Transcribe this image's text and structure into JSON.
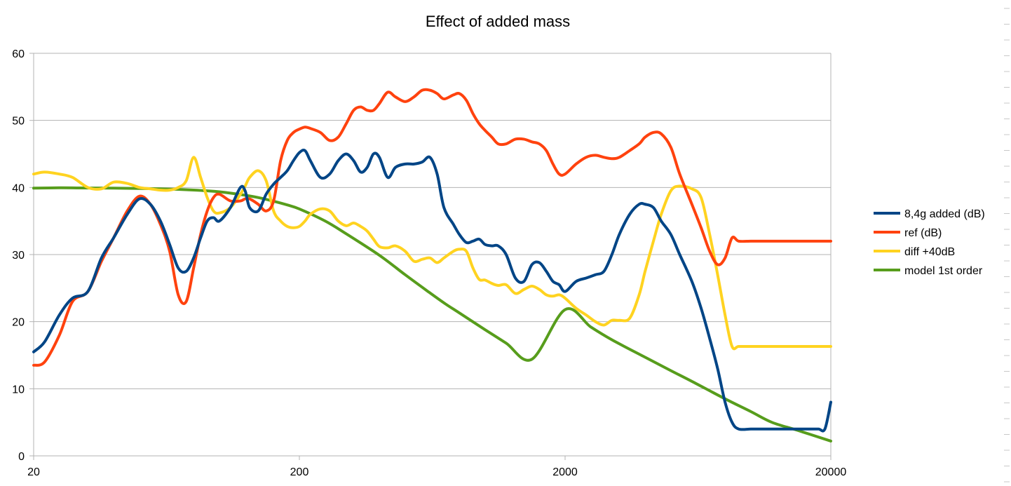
{
  "chart_data": {
    "type": "line",
    "title": "Effect of added mass",
    "xlabel": "",
    "ylabel": "",
    "x_scale": "log",
    "xlim": [
      20,
      20000
    ],
    "ylim": [
      0,
      60
    ],
    "x_ticks": [
      "20",
      "200",
      "2000",
      "20000"
    ],
    "y_ticks": [
      "0",
      "10",
      "20",
      "30",
      "40",
      "50",
      "60"
    ],
    "grid": "horizontal",
    "legend_position": "right",
    "series": [
      {
        "name": "8,4g added (dB)",
        "color": "#004586",
        "x": [
          20,
          22,
          25,
          28,
          32,
          36,
          40,
          45,
          50,
          55,
          60,
          65,
          70,
          75,
          80,
          85,
          90,
          95,
          100,
          110,
          120,
          125,
          130,
          140,
          150,
          160,
          170,
          180,
          190,
          200,
          210,
          220,
          240,
          260,
          280,
          300,
          320,
          340,
          360,
          380,
          400,
          430,
          460,
          500,
          540,
          580,
          620,
          660,
          700,
          760,
          800,
          850,
          900,
          950,
          1000,
          1060,
          1120,
          1200,
          1300,
          1400,
          1500,
          1600,
          1700,
          1800,
          1900,
          2000,
          2200,
          2400,
          2600,
          2800,
          3000,
          3200,
          3500,
          3800,
          4000,
          4300,
          4600,
          5000,
          5400,
          6000,
          6500,
          7000,
          7500,
          8000,
          8500,
          9000,
          10000,
          11000,
          12000,
          13000,
          14000,
          15000,
          16000,
          17000,
          18000,
          19000,
          20000
        ],
        "y": [
          15.5,
          17,
          21,
          23.5,
          24.5,
          29.5,
          32.5,
          36,
          38.3,
          37.5,
          35,
          31.5,
          28,
          27.5,
          29.5,
          32.5,
          35,
          35.5,
          35,
          37,
          40,
          39.5,
          37,
          36.5,
          39,
          40.5,
          41.5,
          42.5,
          44,
          45.2,
          45.5,
          44,
          41.5,
          42,
          44,
          45,
          44,
          42.3,
          43,
          45,
          44.5,
          41.5,
          43,
          43.5,
          43.5,
          43.8,
          44.5,
          42,
          37,
          34.5,
          33,
          31.8,
          32,
          32.3,
          31.5,
          31.3,
          31.3,
          30,
          26.5,
          26,
          28.5,
          28.8,
          27.5,
          26,
          25.5,
          24.5,
          26,
          26.5,
          27,
          27.5,
          30,
          33,
          36,
          37.5,
          37.5,
          37,
          35,
          33,
          30,
          26,
          22,
          17.5,
          13,
          8,
          5,
          4,
          4,
          4,
          4,
          4,
          4,
          4,
          4,
          4,
          4,
          4,
          8
        ]
      },
      {
        "name": "ref (dB)",
        "color": "#ff420e",
        "x": [
          20,
          22,
          25,
          28,
          32,
          36,
          40,
          45,
          50,
          55,
          60,
          65,
          70,
          75,
          80,
          85,
          90,
          95,
          100,
          110,
          120,
          125,
          130,
          140,
          150,
          160,
          170,
          180,
          190,
          200,
          210,
          220,
          240,
          260,
          280,
          300,
          320,
          340,
          360,
          380,
          400,
          430,
          460,
          500,
          540,
          580,
          620,
          660,
          700,
          760,
          800,
          850,
          900,
          950,
          1000,
          1060,
          1120,
          1200,
          1300,
          1400,
          1500,
          1600,
          1700,
          1800,
          1900,
          2000,
          2200,
          2400,
          2600,
          2800,
          3000,
          3200,
          3500,
          3800,
          4000,
          4300,
          4600,
          5000,
          5400,
          6000,
          6500,
          7000,
          7500,
          8000,
          8500,
          9000,
          10000,
          11000,
          12000,
          13000,
          14000,
          15000,
          16000,
          17000,
          18000,
          19000,
          20000
        ],
        "y": [
          13.5,
          14,
          18,
          23,
          24.5,
          29,
          32.5,
          36.5,
          38.7,
          37.5,
          34.5,
          30.5,
          24,
          23,
          28,
          33,
          36.5,
          38.5,
          39,
          38,
          38,
          38.3,
          38.3,
          37.5,
          36.5,
          38,
          44,
          47,
          48.2,
          48.7,
          49,
          48.8,
          48.2,
          47,
          47.5,
          49.5,
          51.5,
          52,
          51.5,
          51.5,
          52.5,
          54.2,
          53.5,
          52.8,
          53.5,
          54.5,
          54.5,
          54,
          53.2,
          53.8,
          54,
          53,
          51,
          49.5,
          48.5,
          47.5,
          46.5,
          46.5,
          47.2,
          47.2,
          46.8,
          46.5,
          45.5,
          43.5,
          42,
          42,
          43.5,
          44.5,
          44.8,
          44.5,
          44.3,
          44.5,
          45.5,
          46.5,
          47.5,
          48.2,
          48,
          46,
          42,
          37.5,
          34,
          30.5,
          28.5,
          29.5,
          32.5,
          32,
          32,
          32,
          32,
          32,
          32,
          32,
          32,
          32,
          32,
          32,
          32
        ]
      },
      {
        "name": "diff +40dB",
        "color": "#ffd320",
        "x": [
          20,
          22,
          25,
          28,
          32,
          36,
          40,
          45,
          50,
          55,
          60,
          65,
          70,
          75,
          80,
          85,
          90,
          95,
          100,
          110,
          120,
          125,
          130,
          140,
          150,
          160,
          170,
          180,
          190,
          200,
          210,
          220,
          240,
          260,
          280,
          300,
          320,
          340,
          360,
          380,
          400,
          430,
          460,
          500,
          540,
          580,
          620,
          660,
          700,
          760,
          800,
          850,
          900,
          950,
          1000,
          1060,
          1120,
          1200,
          1300,
          1400,
          1500,
          1600,
          1700,
          1800,
          1900,
          2000,
          2200,
          2400,
          2600,
          2800,
          3000,
          3200,
          3500,
          3800,
          4000,
          4300,
          4600,
          5000,
          5400,
          6000,
          6500,
          7000,
          7500,
          8000,
          8500,
          9000,
          10000,
          11000,
          12000,
          13000,
          14000,
          15000,
          16000,
          17000,
          18000,
          19000,
          20000
        ],
        "y": [
          42,
          42.3,
          42,
          41.5,
          40,
          39.8,
          40.8,
          40.6,
          40,
          39.8,
          39.6,
          39.6,
          40,
          41,
          44.5,
          41.5,
          38.5,
          36.5,
          36.2,
          37,
          39,
          40.2,
          41.5,
          42.5,
          41,
          36.5,
          35,
          34.2,
          34,
          34.2,
          35,
          36,
          36.8,
          36.5,
          35,
          34.3,
          34.7,
          34.2,
          33.5,
          32.3,
          31.2,
          31,
          31.3,
          30.5,
          29,
          29.3,
          29.5,
          28.8,
          29.5,
          30.5,
          30.8,
          30.5,
          28,
          26.3,
          26.2,
          25.7,
          25.4,
          25.5,
          24.2,
          24.8,
          25.3,
          24.8,
          24,
          23.8,
          24,
          23.5,
          22,
          21,
          20,
          19.5,
          20.2,
          20.2,
          20.5,
          24,
          27.5,
          32,
          36,
          39.5,
          40.2,
          39.8,
          38.5,
          33,
          27,
          21,
          16.3,
          16.3,
          16.3,
          16.3,
          16.3,
          16.3,
          16.3,
          16.3,
          16.3,
          16.3,
          16.3,
          16.3,
          16.3
        ]
      },
      {
        "name": "model 1st order",
        "color": "#579d1c",
        "x": [
          20,
          25,
          30,
          40,
          50,
          60,
          70,
          80,
          90,
          100,
          120,
          140,
          160,
          180,
          200,
          250,
          300,
          400,
          500,
          600,
          700,
          800,
          1000,
          1200,
          1500,
          2000,
          2500,
          3000,
          4000,
          5000,
          6000,
          8000,
          10000,
          12000,
          15000,
          20000
        ],
        "y": [
          39.9,
          39.95,
          39.93,
          39.9,
          39.85,
          39.8,
          39.72,
          39.62,
          39.5,
          39.35,
          38.95,
          38.5,
          37.95,
          37.4,
          36.8,
          35.0,
          33.1,
          29.9,
          27.0,
          24.7,
          22.8,
          21.3,
          18.8,
          16.8,
          14.4,
          21.8,
          19.2,
          17.3,
          14.7,
          12.7,
          11.1,
          8.5,
          6.6,
          5.0,
          3.8,
          2.2
        ]
      }
    ]
  }
}
